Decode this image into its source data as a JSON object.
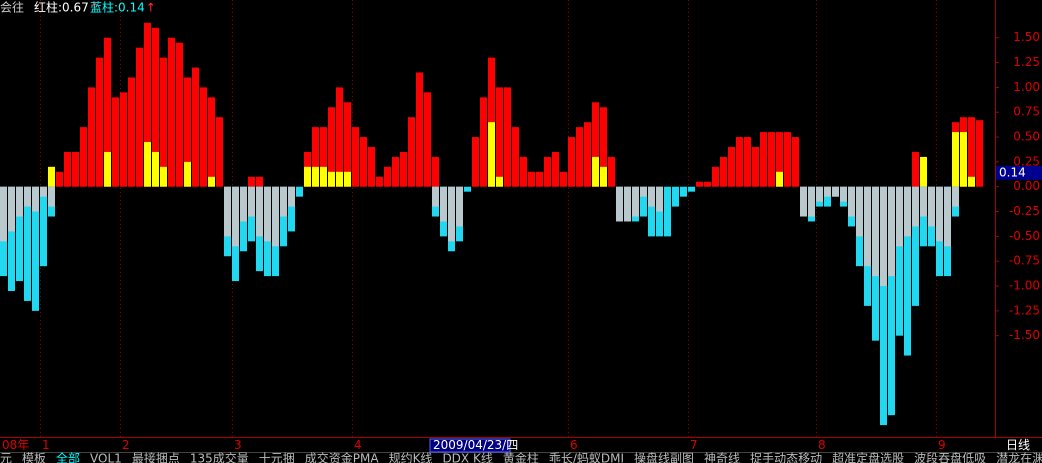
{
  "chart_data": {
    "type": "bar",
    "header": [
      {
        "text": "会往"
      },
      {
        "text": "红柱:0.67",
        "arrow": "↑"
      },
      {
        "text": "蓝柱:0.14",
        "arrow": "↑"
      }
    ],
    "current_value": 0.14,
    "period": "日线",
    "categories": [
      "08年",
      null,
      null,
      null,
      null,
      "1",
      null,
      null,
      null,
      null,
      null,
      null,
      null,
      null,
      null,
      "2",
      null,
      null,
      null,
      null,
      null,
      null,
      null,
      null,
      null,
      null,
      null,
      null,
      null,
      "3",
      null,
      null,
      null,
      null,
      null,
      null,
      null,
      null,
      null,
      null,
      null,
      null,
      null,
      null,
      "4",
      null,
      null,
      null,
      null,
      null,
      null,
      null,
      null,
      null,
      "2009/04/23/四",
      null,
      null,
      null,
      null,
      null,
      null,
      null,
      null,
      null,
      null,
      null,
      null,
      null,
      null,
      null,
      null,
      "6",
      null,
      null,
      null,
      null,
      null,
      null,
      null,
      null,
      null,
      null,
      null,
      null,
      null,
      null,
      "7",
      null,
      null,
      null,
      null,
      null,
      null,
      null,
      null,
      null,
      null,
      null,
      null,
      null,
      null,
      null,
      "8",
      null,
      null,
      null,
      null,
      null,
      null,
      null,
      null,
      null,
      null,
      null,
      null,
      null,
      null,
      "9",
      null,
      null,
      null,
      null,
      null
    ],
    "series": [
      {
        "color": "#ff0000",
        "values": [
          null,
          null,
          null,
          null,
          null,
          null,
          0.2,
          0.15,
          0.35,
          0.35,
          0.6,
          1.0,
          1.3,
          1.5,
          0.9,
          0.95,
          1.1,
          1.4,
          1.65,
          1.6,
          1.3,
          1.5,
          1.45,
          1.1,
          1.2,
          1.0,
          0.9,
          0.7,
          null,
          null,
          null,
          0.1,
          0.1,
          null,
          null,
          null,
          null,
          null,
          0.35,
          0.6,
          0.6,
          0.8,
          1.0,
          0.85,
          0.6,
          0.5,
          0.4,
          0.1,
          0.2,
          0.3,
          0.35,
          0.7,
          1.15,
          0.95,
          0.3,
          null,
          null,
          null,
          null,
          0.5,
          0.9,
          1.3,
          1.0,
          1.0,
          0.6,
          0.3,
          0.15,
          0.15,
          0.3,
          0.35,
          0.15,
          0.5,
          0.6,
          0.65,
          0.85,
          0.8,
          0.3,
          null,
          null,
          null,
          null,
          null,
          null,
          null,
          null,
          null,
          null,
          0.05,
          0.05,
          0.2,
          0.3,
          0.4,
          0.5,
          0.5,
          0.4,
          0.55,
          0.55,
          0.55,
          0.55,
          0.5,
          null,
          null,
          null,
          null,
          null,
          null,
          null,
          null,
          null,
          null,
          null,
          null,
          null,
          null,
          0.35,
          0.3,
          null,
          null,
          null,
          0.65,
          0.7,
          0.7,
          0.67
        ]
      },
      {
        "color": "#ffff00",
        "values": [
          null,
          null,
          null,
          null,
          null,
          null,
          0.2,
          null,
          null,
          null,
          null,
          null,
          null,
          0.35,
          null,
          null,
          null,
          null,
          0.45,
          0.35,
          0.2,
          null,
          null,
          0.25,
          null,
          null,
          0.1,
          null,
          null,
          null,
          null,
          null,
          null,
          null,
          null,
          null,
          null,
          null,
          0.2,
          0.2,
          0.2,
          0.15,
          0.15,
          0.15,
          null,
          null,
          null,
          null,
          null,
          null,
          null,
          null,
          null,
          null,
          null,
          null,
          null,
          null,
          null,
          null,
          null,
          0.65,
          0.1,
          null,
          null,
          null,
          null,
          null,
          null,
          null,
          null,
          null,
          null,
          null,
          0.3,
          0.2,
          null,
          null,
          null,
          null,
          null,
          null,
          null,
          null,
          null,
          null,
          null,
          null,
          null,
          null,
          null,
          null,
          null,
          null,
          null,
          null,
          null,
          0.15,
          null,
          null,
          null,
          null,
          null,
          null,
          null,
          null,
          null,
          null,
          null,
          null,
          null,
          null,
          null,
          null,
          null,
          0.3,
          null,
          null,
          null,
          0.55,
          0.55,
          0.1,
          null
        ]
      },
      {
        "color": "#22d8f0",
        "values": [
          -0.9,
          -1.05,
          -0.95,
          -1.15,
          -1.25,
          -0.8,
          -0.3,
          null,
          null,
          null,
          null,
          null,
          null,
          null,
          null,
          null,
          null,
          null,
          null,
          null,
          null,
          null,
          null,
          null,
          null,
          null,
          null,
          null,
          -0.7,
          -0.95,
          -0.65,
          -0.55,
          -0.85,
          -0.9,
          -0.9,
          -0.6,
          -0.45,
          -0.1,
          null,
          null,
          null,
          null,
          null,
          null,
          null,
          null,
          null,
          null,
          null,
          null,
          null,
          null,
          null,
          null,
          -0.3,
          -0.5,
          -0.65,
          -0.55,
          -0.05,
          null,
          null,
          null,
          null,
          null,
          null,
          null,
          null,
          null,
          null,
          null,
          null,
          null,
          null,
          null,
          null,
          null,
          null,
          -0.35,
          -0.35,
          -0.35,
          -0.3,
          -0.5,
          -0.5,
          -0.5,
          -0.2,
          -0.1,
          -0.05,
          null,
          null,
          null,
          null,
          null,
          null,
          null,
          null,
          null,
          null,
          null,
          null,
          null,
          -0.3,
          -0.35,
          -0.2,
          -0.2,
          -0.1,
          -0.2,
          -0.4,
          -0.8,
          -1.2,
          -1.55,
          -2.4,
          -2.3,
          -1.5,
          -1.7,
          -1.2,
          -0.6,
          -0.6,
          -0.9,
          -0.9,
          -0.3,
          null,
          null,
          null
        ]
      },
      {
        "color": "#b8c8cc",
        "values": [
          -0.55,
          -0.45,
          -0.3,
          -0.2,
          -0.25,
          -0.1,
          -0.2,
          null,
          null,
          null,
          null,
          null,
          null,
          null,
          null,
          null,
          null,
          null,
          null,
          null,
          null,
          null,
          null,
          null,
          null,
          null,
          null,
          null,
          -0.5,
          -0.6,
          -0.35,
          -0.3,
          -0.5,
          -0.55,
          -0.6,
          -0.3,
          -0.2,
          null,
          null,
          null,
          null,
          null,
          null,
          null,
          null,
          null,
          null,
          null,
          null,
          null,
          null,
          null,
          null,
          null,
          -0.2,
          -0.35,
          -0.55,
          -0.4,
          null,
          null,
          null,
          null,
          null,
          null,
          null,
          null,
          null,
          null,
          null,
          null,
          null,
          null,
          null,
          null,
          null,
          null,
          null,
          -0.35,
          -0.35,
          -0.3,
          -0.1,
          -0.2,
          -0.25,
          null,
          null,
          null,
          null,
          null,
          null,
          null,
          null,
          null,
          null,
          null,
          null,
          null,
          null,
          null,
          null,
          null,
          -0.3,
          -0.3,
          -0.15,
          -0.1,
          -0.1,
          -0.15,
          -0.3,
          -0.5,
          -0.8,
          -0.9,
          -1.0,
          -0.9,
          -0.6,
          -0.5,
          -0.4,
          -0.3,
          -0.4,
          -0.55,
          -0.6,
          -0.2,
          null,
          null,
          null
        ]
      }
    ],
    "ylim": [
      -2.52,
      1.88
    ],
    "yticks": [
      {
        "value": 1.5,
        "label": "1.50"
      },
      {
        "value": 1.25,
        "label": "1.25"
      },
      {
        "value": 1,
        "label": "1.00"
      },
      {
        "value": 0.75,
        "label": "0.75"
      },
      {
        "value": 0.5,
        "label": "0.50"
      },
      {
        "value": 0.25,
        "label": "0.25"
      },
      {
        "value": 0,
        "label": "0.00"
      },
      {
        "value": -0.25,
        "label": "-0.25"
      },
      {
        "value": -0.5,
        "label": "-0.50"
      },
      {
        "value": -0.75,
        "label": "-0.75"
      },
      {
        "value": -1,
        "label": "-1.00"
      },
      {
        "value": -1.25,
        "label": "-1.25"
      },
      {
        "value": -1.5,
        "label": "-1.50"
      }
    ],
    "tabs": [
      "元",
      "模板",
      "全部",
      "VOL1",
      "最接捆点",
      "135成交量",
      "十元捆",
      "成交资金PMA",
      "规约K线",
      "DDX K线",
      "黄金柱",
      "乖长/蚂蚁DMI",
      "操盘线副图",
      "神奇线",
      "捉手动态移动",
      "超准定盘选股",
      "波段吞盘低吸",
      "潜龙在渊选股"
    ]
  }
}
